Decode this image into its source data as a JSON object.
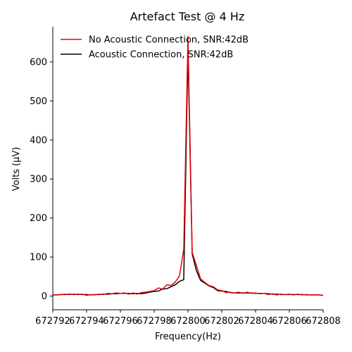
{
  "chart_data": {
    "type": "line",
    "title": "Artefact Test @ 4 Hz",
    "xlabel": "Frequency(Hz)",
    "ylabel": "Volts (μV)",
    "xlim": [
      672792,
      672808
    ],
    "ylim": [
      -35,
      690
    ],
    "xticks": [
      672792,
      672794,
      672796,
      672798,
      672800,
      672802,
      672804,
      672806,
      672808
    ],
    "xtick_labels": [
      "672792",
      "672794",
      "672796",
      "672798",
      "672800",
      "672802",
      "672804",
      "672806",
      "672808"
    ],
    "yticks": [
      0,
      100,
      200,
      300,
      400,
      500,
      600
    ],
    "ytick_labels": [
      "0",
      "100",
      "200",
      "300",
      "400",
      "500",
      "600"
    ],
    "grid": false,
    "legend_position": "top-left",
    "series": [
      {
        "name": "Acoustic Connection, SNR:42dB",
        "color": "#000000",
        "x": [
          672792,
          672792.25,
          672792.5,
          672792.75,
          672793,
          672793.25,
          672793.5,
          672793.75,
          672794,
          672794.25,
          672794.5,
          672794.75,
          672795,
          672795.25,
          672795.5,
          672795.75,
          672796,
          672796.25,
          672796.5,
          672796.75,
          672797,
          672797.25,
          672797.5,
          672797.75,
          672798,
          672798.25,
          672798.5,
          672798.75,
          672799,
          672799.25,
          672799.5,
          672799.75,
          672800,
          672800.25,
          672800.5,
          672800.75,
          672801,
          672801.25,
          672801.5,
          672801.75,
          672802,
          672802.25,
          672802.5,
          672802.75,
          672803,
          672803.25,
          672803.5,
          672803.75,
          672804,
          672804.25,
          672804.5,
          672804.75,
          672805,
          672805.25,
          672805.5,
          672805.75,
          672806,
          672806.25,
          672806.5,
          672806.75,
          672807,
          672807.25,
          672807.5,
          672807.75,
          672808
        ],
        "y": [
          3,
          3,
          4,
          4,
          5,
          4,
          5,
          4,
          4,
          3,
          4,
          4,
          5,
          5,
          6,
          6,
          7,
          7,
          7,
          6,
          7,
          6,
          8,
          10,
          12,
          13,
          18,
          19,
          24,
          29,
          38,
          42,
          630,
          108,
          65,
          40,
          33,
          26,
          22,
          14,
          13,
          12,
          9,
          8,
          8,
          8,
          8,
          8,
          7,
          7,
          7,
          6,
          5,
          5,
          4,
          4,
          4,
          4,
          4,
          4,
          3,
          3,
          3,
          3,
          2
        ]
      },
      {
        "name": "No Acoustic Connection, SNR:42dB",
        "color": "#e8000b",
        "x": [
          672792,
          672792.25,
          672792.5,
          672792.75,
          672793,
          672793.25,
          672793.5,
          672793.75,
          672794,
          672794.25,
          672794.5,
          672794.75,
          672795,
          672795.25,
          672795.5,
          672795.75,
          672796,
          672796.25,
          672796.5,
          672796.75,
          672797,
          672797.25,
          672797.5,
          672797.75,
          672798,
          672798.25,
          672798.5,
          672798.75,
          672799,
          672799.25,
          672799.5,
          672799.75,
          672800,
          672800.25,
          672800.5,
          672800.75,
          672801,
          672801.25,
          672801.5,
          672801.75,
          672802,
          672802.25,
          672802.5,
          672802.75,
          672803,
          672803.25,
          672803.5,
          672803.75,
          672804,
          672804.25,
          672804.5,
          672804.75,
          672805,
          672805.25,
          672805.5,
          672805.75,
          672806,
          672806.25,
          672806.5,
          672806.75,
          672807,
          672807.25,
          672807.5,
          672807.75,
          672808
        ],
        "y": [
          3,
          3,
          4,
          5,
          4,
          5,
          4,
          5,
          2,
          4,
          3,
          5,
          4,
          7,
          6,
          8,
          7,
          8,
          5,
          8,
          5,
          9,
          10,
          12,
          14,
          21,
          18,
          29,
          27,
          36,
          52,
          120,
          665,
          112,
          78,
          44,
          35,
          27,
          24,
          16,
          14,
          9,
          10,
          8,
          10,
          7,
          10,
          7,
          8,
          6,
          7,
          4,
          6,
          3,
          5,
          4,
          5,
          3,
          5,
          3,
          4,
          3,
          3,
          3,
          2
        ]
      }
    ]
  }
}
